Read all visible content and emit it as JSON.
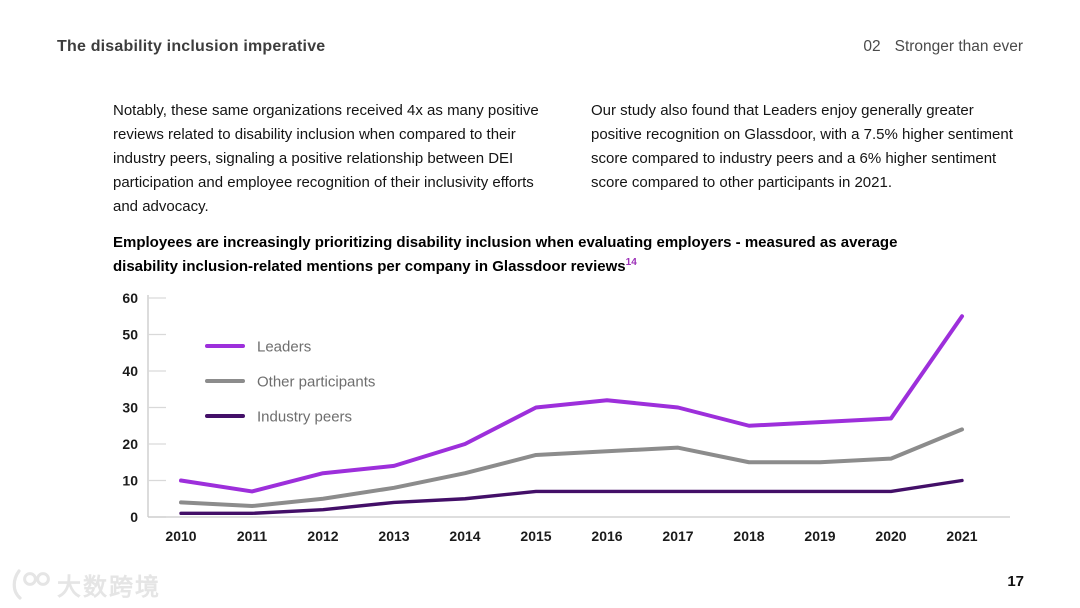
{
  "page": {
    "number": "17",
    "background": "#ffffff"
  },
  "header": {
    "title": "The disability inclusion imperative",
    "section_number": "02",
    "section_title": "Stronger than ever"
  },
  "intro": {
    "left_paragraph": "Notably, these same organizations received 4x as many positive reviews related to disability inclusion when compared to their industry peers, signaling a positive relationship between DEI participation and employee recognition of their inclusivity efforts and advocacy.",
    "right_paragraph": "Our study also found that Leaders enjoy generally greater positive recognition on Glassdoor, with a 7.5% higher sentiment score compared to industry peers and a 6% higher sentiment score compared to other participants in 2021."
  },
  "chart_heading": {
    "text": "Employees are increasingly prioritizing disability inclusion when evaluating employers - measured as average disability inclusion-related mentions per company in Glassdoor reviews",
    "footnote_marker": "14",
    "footnote_color": "#9c2fb8"
  },
  "chart_data": {
    "type": "line",
    "title": "Employees are increasingly prioritizing disability inclusion when evaluating employers - measured as average disability inclusion-related mentions per company in Glassdoor reviews",
    "x": [
      "2010",
      "2011",
      "2012",
      "2013",
      "2014",
      "2015",
      "2016",
      "2017",
      "2018",
      "2019",
      "2020",
      "2021"
    ],
    "series": [
      {
        "name": "Leaders",
        "color": "#9d2fdb",
        "values": [
          10,
          7,
          12,
          14,
          20,
          30,
          32,
          30,
          25,
          26,
          27,
          55
        ]
      },
      {
        "name": "Other participants",
        "color": "#8c8c8c",
        "values": [
          4,
          3,
          5,
          8,
          12,
          17,
          18,
          19,
          15,
          15,
          16,
          24
        ]
      },
      {
        "name": "Industry peers",
        "color": "#430f68",
        "values": [
          1,
          1,
          2,
          4,
          5,
          7,
          7,
          7,
          7,
          7,
          7,
          10
        ]
      }
    ],
    "ylim": [
      0,
      60
    ],
    "yticks": [
      0,
      10,
      20,
      30,
      40,
      50,
      60
    ],
    "xlabel": "",
    "ylabel": "",
    "grid": false,
    "legend_position": "inside-top-left",
    "axis_color": "#c9c9c9",
    "tick_color": "#d9d9d9"
  },
  "watermark": {
    "text": "大数跨境"
  }
}
